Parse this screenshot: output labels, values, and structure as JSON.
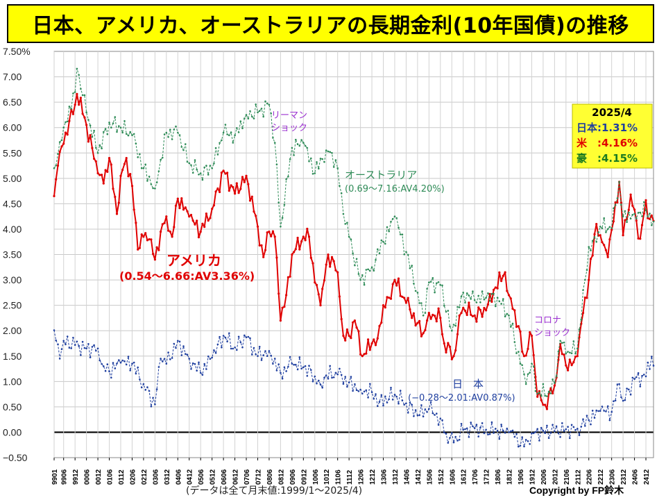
{
  "title": "日本、アメリカ、オーストラリアの長期金利(10年国債)の推移",
  "footnote": "(データは全て月末値:1999/1〜2025/4)",
  "copyright": "Copyright by FP鈴木",
  "legend_box": {
    "date": "2025/4",
    "japan": "日本:1.31%",
    "us": "米　:4.16%",
    "aus": "豪　:4.15%"
  },
  "annotations": {
    "lehman": [
      "リーマン",
      "ショック"
    ],
    "corona": [
      "コロナ",
      "ショック"
    ],
    "aus_label": [
      "オーストラリア",
      "(0.69〜7.16:AV4.20%)"
    ],
    "us_label": [
      "アメリカ",
      "(0.54〜6.66:AV3.36%)"
    ],
    "jp_label": [
      "日　本",
      "(−0.28〜2.01:AV0.87%)"
    ]
  },
  "colors": {
    "us": "#e00000",
    "aus": "#2e8b57",
    "japan": "#1f3f9f",
    "lehman": "#9b30d0",
    "corona": "#9b30d0",
    "title_bg": "#ffff00",
    "legend_bg": "#ffff33"
  },
  "chart_data": {
    "type": "line",
    "ylabel": "",
    "ylim": [
      -0.5,
      7.5
    ],
    "yticks": [
      "7.50%",
      "7.00",
      "6.50",
      "6.00",
      "5.50",
      "5.00",
      "4.50",
      "4.00",
      "3.50",
      "3.00",
      "2.50",
      "2.00",
      "1.50",
      "1.00",
      "0.50",
      "0.00",
      "−0.50"
    ],
    "xticks": [
      "9901",
      "9906",
      "9912",
      "0006",
      "0012",
      "0106",
      "0112",
      "0206",
      "0212",
      "0306",
      "0312",
      "0406",
      "0412",
      "0506",
      "0512",
      "0606",
      "0612",
      "0706",
      "0712",
      "0806",
      "0812",
      "0906",
      "0912",
      "1006",
      "1012",
      "1106",
      "1112",
      "1206",
      "1212",
      "1306",
      "1312",
      "1406",
      "1412",
      "1506",
      "1512",
      "1606",
      "1612",
      "1706",
      "1712",
      "1806",
      "1812",
      "1906",
      "1912",
      "2006",
      "2012",
      "2106",
      "2112",
      "2206",
      "2212",
      "2306",
      "2312",
      "2406",
      "2412"
    ],
    "x_start": "1999-01",
    "x_end": "2025-04",
    "grid": true,
    "series": [
      {
        "name": "アメリカ",
        "points": [
          [
            "1999-01",
            4.65
          ],
          [
            "1999-03",
            5.25
          ],
          [
            "1999-07",
            5.9
          ],
          [
            "1999-12",
            6.45
          ],
          [
            "2000-01",
            6.66
          ],
          [
            "2000-05",
            6.2
          ],
          [
            "2000-12",
            5.1
          ],
          [
            "2001-03",
            4.9
          ],
          [
            "2001-06",
            5.4
          ],
          [
            "2001-10",
            4.3
          ],
          [
            "2001-12",
            5.05
          ],
          [
            "2002-03",
            5.4
          ],
          [
            "2002-06",
            4.85
          ],
          [
            "2002-09",
            3.6
          ],
          [
            "2002-12",
            3.85
          ],
          [
            "2003-03",
            3.8
          ],
          [
            "2003-06",
            3.4
          ],
          [
            "2003-09",
            3.95
          ],
          [
            "2003-12",
            4.25
          ],
          [
            "2004-03",
            3.85
          ],
          [
            "2004-06",
            4.6
          ],
          [
            "2004-12",
            4.25
          ],
          [
            "2005-06",
            3.95
          ],
          [
            "2005-12",
            4.4
          ],
          [
            "2006-06",
            5.15
          ],
          [
            "2006-12",
            4.7
          ],
          [
            "2007-06",
            5.05
          ],
          [
            "2007-12",
            4.05
          ],
          [
            "2008-03",
            3.45
          ],
          [
            "2008-06",
            3.95
          ],
          [
            "2008-09",
            3.85
          ],
          [
            "2008-12",
            2.2
          ],
          [
            "2009-03",
            2.7
          ],
          [
            "2009-06",
            3.5
          ],
          [
            "2009-12",
            3.85
          ],
          [
            "2010-03",
            3.85
          ],
          [
            "2010-06",
            2.95
          ],
          [
            "2010-09",
            2.5
          ],
          [
            "2010-12",
            3.3
          ],
          [
            "2011-03",
            3.45
          ],
          [
            "2011-06",
            3.15
          ],
          [
            "2011-09",
            1.9
          ],
          [
            "2011-12",
            1.9
          ],
          [
            "2012-03",
            2.2
          ],
          [
            "2012-07",
            1.5
          ],
          [
            "2012-12",
            1.75
          ],
          [
            "2013-03",
            1.85
          ],
          [
            "2013-06",
            2.5
          ],
          [
            "2013-09",
            2.65
          ],
          [
            "2013-12",
            3.0
          ],
          [
            "2014-06",
            2.55
          ],
          [
            "2014-12",
            2.15
          ],
          [
            "2015-03",
            1.95
          ],
          [
            "2015-06",
            2.35
          ],
          [
            "2015-12",
            2.25
          ],
          [
            "2016-02",
            1.75
          ],
          [
            "2016-07",
            1.5
          ],
          [
            "2016-11",
            2.35
          ],
          [
            "2016-12",
            2.45
          ],
          [
            "2017-06",
            2.3
          ],
          [
            "2017-12",
            2.4
          ],
          [
            "2018-05",
            2.85
          ],
          [
            "2018-10",
            3.15
          ],
          [
            "2018-12",
            2.7
          ],
          [
            "2019-03",
            2.4
          ],
          [
            "2019-08",
            1.5
          ],
          [
            "2019-12",
            1.9
          ],
          [
            "2020-03",
            0.7
          ],
          [
            "2020-07",
            0.54
          ],
          [
            "2020-12",
            0.92
          ],
          [
            "2021-03",
            1.74
          ],
          [
            "2021-07",
            1.22
          ],
          [
            "2021-12",
            1.5
          ],
          [
            "2022-03",
            2.35
          ],
          [
            "2022-06",
            3.0
          ],
          [
            "2022-10",
            4.1
          ],
          [
            "2022-12",
            3.88
          ],
          [
            "2023-04",
            3.45
          ],
          [
            "2023-10",
            4.93
          ],
          [
            "2023-12",
            3.88
          ],
          [
            "2024-04",
            4.68
          ],
          [
            "2024-09",
            3.81
          ],
          [
            "2024-12",
            4.57
          ],
          [
            "2025-02",
            4.2
          ],
          [
            "2025-04",
            4.16
          ]
        ]
      },
      {
        "name": "オーストラリア",
        "points": [
          [
            "1999-01",
            5.2
          ],
          [
            "1999-06",
            6.0
          ],
          [
            "1999-12",
            6.7
          ],
          [
            "2000-01",
            7.16
          ],
          [
            "2000-06",
            6.3
          ],
          [
            "2000-12",
            5.5
          ],
          [
            "2001-06",
            6.1
          ],
          [
            "2001-12",
            6.0
          ],
          [
            "2002-06",
            5.85
          ],
          [
            "2002-12",
            5.2
          ],
          [
            "2003-06",
            4.8
          ],
          [
            "2003-12",
            5.9
          ],
          [
            "2004-06",
            5.9
          ],
          [
            "2004-12",
            5.3
          ],
          [
            "2005-06",
            5.1
          ],
          [
            "2005-12",
            5.2
          ],
          [
            "2006-06",
            5.9
          ],
          [
            "2006-12",
            5.85
          ],
          [
            "2007-06",
            6.25
          ],
          [
            "2007-12",
            6.3
          ],
          [
            "2008-06",
            6.45
          ],
          [
            "2008-09",
            5.7
          ],
          [
            "2008-12",
            4.05
          ],
          [
            "2009-06",
            5.6
          ],
          [
            "2009-12",
            5.7
          ],
          [
            "2010-06",
            5.1
          ],
          [
            "2010-12",
            5.55
          ],
          [
            "2011-03",
            5.5
          ],
          [
            "2011-06",
            5.2
          ],
          [
            "2011-09",
            4.3
          ],
          [
            "2011-12",
            3.85
          ],
          [
            "2012-06",
            3.0
          ],
          [
            "2012-12",
            3.25
          ],
          [
            "2013-06",
            3.75
          ],
          [
            "2013-12",
            4.25
          ],
          [
            "2014-06",
            3.55
          ],
          [
            "2014-12",
            2.75
          ],
          [
            "2015-03",
            2.3
          ],
          [
            "2015-06",
            2.95
          ],
          [
            "2015-12",
            2.9
          ],
          [
            "2016-06",
            2.0
          ],
          [
            "2016-12",
            2.75
          ],
          [
            "2017-06",
            2.6
          ],
          [
            "2017-12",
            2.65
          ],
          [
            "2018-06",
            2.65
          ],
          [
            "2018-12",
            2.3
          ],
          [
            "2019-06",
            1.35
          ],
          [
            "2019-09",
            0.95
          ],
          [
            "2019-12",
            1.35
          ],
          [
            "2020-03",
            0.76
          ],
          [
            "2020-09",
            0.8
          ],
          [
            "2020-12",
            0.97
          ],
          [
            "2021-03",
            1.8
          ],
          [
            "2021-06",
            1.55
          ],
          [
            "2021-12",
            1.65
          ],
          [
            "2022-06",
            3.65
          ],
          [
            "2022-10",
            3.75
          ],
          [
            "2022-12",
            4.05
          ],
          [
            "2023-06",
            4.02
          ],
          [
            "2023-10",
            4.93
          ],
          [
            "2023-12",
            4.25
          ],
          [
            "2024-06",
            4.3
          ],
          [
            "2024-12",
            4.37
          ],
          [
            "2025-04",
            4.15
          ]
        ]
      },
      {
        "name": "日本",
        "points": [
          [
            "1999-01",
            2.01
          ],
          [
            "1999-04",
            1.45
          ],
          [
            "1999-06",
            1.8
          ],
          [
            "1999-12",
            1.72
          ],
          [
            "2000-06",
            1.65
          ],
          [
            "2000-12",
            1.65
          ],
          [
            "2001-03",
            1.3
          ],
          [
            "2001-06",
            1.2
          ],
          [
            "2001-12",
            1.37
          ],
          [
            "2002-06",
            1.35
          ],
          [
            "2002-12",
            0.95
          ],
          [
            "2003-06",
            0.55
          ],
          [
            "2003-09",
            1.45
          ],
          [
            "2003-12",
            1.35
          ],
          [
            "2004-06",
            1.8
          ],
          [
            "2004-12",
            1.45
          ],
          [
            "2005-06",
            1.17
          ],
          [
            "2005-12",
            1.47
          ],
          [
            "2006-06",
            1.9
          ],
          [
            "2006-12",
            1.67
          ],
          [
            "2007-06",
            1.87
          ],
          [
            "2007-12",
            1.5
          ],
          [
            "2008-06",
            1.6
          ],
          [
            "2008-12",
            1.17
          ],
          [
            "2009-06",
            1.35
          ],
          [
            "2009-12",
            1.28
          ],
          [
            "2010-06",
            1.1
          ],
          [
            "2010-09",
            0.94
          ],
          [
            "2010-12",
            1.12
          ],
          [
            "2011-06",
            1.14
          ],
          [
            "2011-12",
            0.98
          ],
          [
            "2012-06",
            0.84
          ],
          [
            "2012-12",
            0.79
          ],
          [
            "2013-04",
            0.6
          ],
          [
            "2013-12",
            0.74
          ],
          [
            "2014-06",
            0.57
          ],
          [
            "2014-12",
            0.33
          ],
          [
            "2015-06",
            0.46
          ],
          [
            "2015-12",
            0.27
          ],
          [
            "2016-03",
            -0.03
          ],
          [
            "2016-07",
            -0.2
          ],
          [
            "2016-12",
            0.05
          ],
          [
            "2017-06",
            0.08
          ],
          [
            "2017-12",
            0.05
          ],
          [
            "2018-06",
            0.03
          ],
          [
            "2018-12",
            0.0
          ],
          [
            "2019-03",
            -0.09
          ],
          [
            "2019-08",
            -0.28
          ],
          [
            "2019-12",
            -0.02
          ],
          [
            "2020-06",
            0.03
          ],
          [
            "2020-12",
            0.02
          ],
          [
            "2021-06",
            0.06
          ],
          [
            "2021-12",
            0.07
          ],
          [
            "2022-06",
            0.24
          ],
          [
            "2022-12",
            0.42
          ],
          [
            "2023-06",
            0.4
          ],
          [
            "2023-10",
            0.95
          ],
          [
            "2023-12",
            0.62
          ],
          [
            "2024-06",
            1.05
          ],
          [
            "2024-12",
            1.1
          ],
          [
            "2025-03",
            1.49
          ],
          [
            "2025-04",
            1.31
          ]
        ]
      }
    ]
  }
}
